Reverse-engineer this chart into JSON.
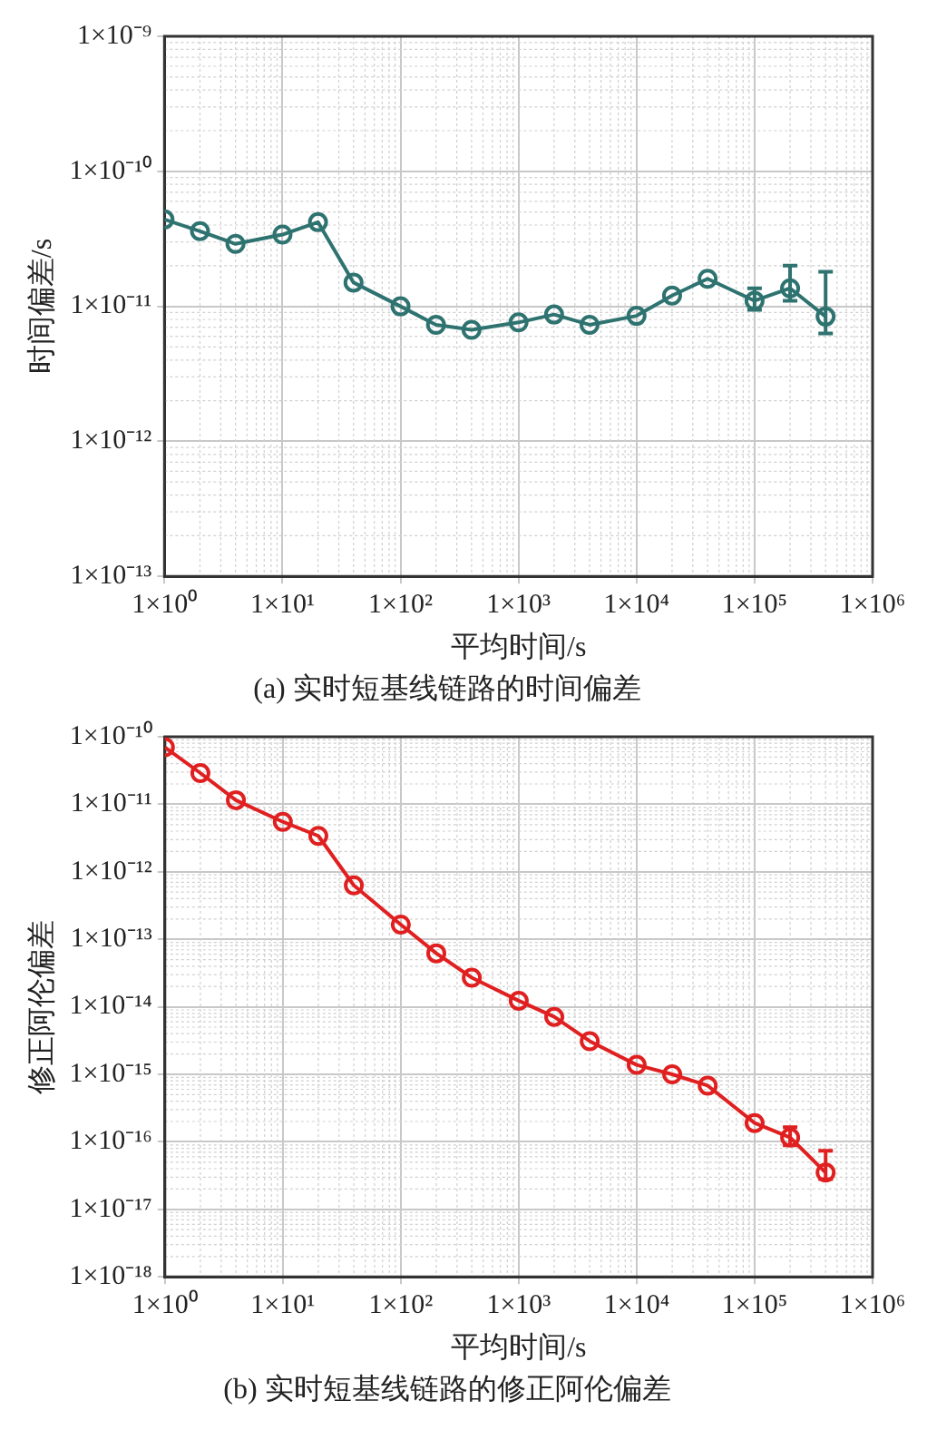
{
  "chart_data": [
    {
      "type": "line",
      "title": "(a) 实时短基线链路的时间偏差",
      "xlabel": "平均时间/s",
      "ylabel": "时间偏差/s",
      "log": "xy",
      "grid": true,
      "marker": "circle",
      "line_style": "solid",
      "x": [
        1,
        2,
        4,
        10,
        20,
        40,
        100,
        200,
        400,
        1000,
        2000,
        4000,
        10000,
        20000,
        40000,
        100000,
        200000,
        400000
      ],
      "xlim": [
        1,
        1000000
      ],
      "xticks": [
        {
          "value": 1,
          "label": "1×10⁰"
        },
        {
          "value": 10,
          "label": "1×10¹"
        },
        {
          "value": 100,
          "label": "1×10²"
        },
        {
          "value": 1000,
          "label": "1×10³"
        },
        {
          "value": 10000,
          "label": "1×10⁴"
        },
        {
          "value": 100000,
          "label": "1×10⁵"
        },
        {
          "value": 1000000,
          "label": "1×10⁶"
        }
      ],
      "ylim": [
        1e-13,
        1e-09
      ],
      "yticks": [
        {
          "value": 1e-13,
          "label": "1×10⁻¹³"
        },
        {
          "value": 1e-12,
          "label": "1×10⁻¹²"
        },
        {
          "value": 1e-11,
          "label": "1×10⁻¹¹"
        },
        {
          "value": 1e-10,
          "label": "1×10⁻¹⁰"
        },
        {
          "value": 1e-09,
          "label": "1×10⁻⁹"
        }
      ],
      "series": [
        {
          "color": "#2e7370",
          "values": [
            4.4e-11,
            3.6e-11,
            2.9e-11,
            3.4e-11,
            4.2e-11,
            1.5e-11,
            1e-11,
            7.3e-12,
            6.7e-12,
            7.6e-12,
            8.7e-12,
            7.3e-12,
            8.5e-12,
            1.2e-11,
            1.6e-11,
            1.1e-11,
            1.36e-11,
            8.4e-12
          ],
          "errors": [
            null,
            null,
            null,
            null,
            null,
            null,
            null,
            null,
            null,
            null,
            null,
            null,
            null,
            null,
            null,
            [
              9.4e-12,
              1.36e-11
            ],
            [
              1.1e-11,
              2e-11
            ],
            [
              6.3e-12,
              1.8e-11
            ]
          ]
        }
      ]
    },
    {
      "type": "line",
      "title": "(b) 实时短基线链路的修正阿伦偏差",
      "xlabel": "平均时间/s",
      "ylabel": "修正阿伦偏差",
      "log": "xy",
      "grid": true,
      "marker": "circle",
      "line_style": "solid",
      "x": [
        1,
        2,
        4,
        10,
        20,
        40,
        100,
        200,
        400,
        1000,
        2000,
        4000,
        10000,
        20000,
        40000,
        100000,
        200000,
        400000
      ],
      "xlim": [
        1,
        1000000
      ],
      "xticks": [
        {
          "value": 1,
          "label": "1×10⁰"
        },
        {
          "value": 10,
          "label": "1×10¹"
        },
        {
          "value": 100,
          "label": "1×10²"
        },
        {
          "value": 1000,
          "label": "1×10³"
        },
        {
          "value": 10000,
          "label": "1×10⁴"
        },
        {
          "value": 100000,
          "label": "1×10⁵"
        },
        {
          "value": 1000000,
          "label": "1×10⁶"
        }
      ],
      "ylim": [
        1e-18,
        1e-10
      ],
      "yticks": [
        {
          "value": 1e-18,
          "label": "1×10⁻¹⁸"
        },
        {
          "value": 1e-17,
          "label": "1×10⁻¹⁷"
        },
        {
          "value": 1e-16,
          "label": "1×10⁻¹⁶"
        },
        {
          "value": 1e-15,
          "label": "1×10⁻¹⁵"
        },
        {
          "value": 1e-14,
          "label": "1×10⁻¹⁴"
        },
        {
          "value": 1e-13,
          "label": "1×10⁻¹³"
        },
        {
          "value": 1e-12,
          "label": "1×10⁻¹²"
        },
        {
          "value": 1e-11,
          "label": "1×10⁻¹¹"
        },
        {
          "value": 1e-10,
          "label": "1×10⁻¹⁰"
        }
      ],
      "series": [
        {
          "color": "#e02020",
          "values": [
            7e-11,
            2.9e-11,
            1.15e-11,
            5.5e-12,
            3.4e-12,
            6.3e-13,
            1.65e-13,
            6.2e-14,
            2.7e-14,
            1.23e-14,
            7.1e-15,
            3.1e-15,
            1.38e-15,
            1e-15,
            6.8e-16,
            1.9e-16,
            1.16e-16,
            3.5e-17
          ],
          "errors": [
            null,
            null,
            null,
            null,
            null,
            null,
            null,
            null,
            null,
            null,
            null,
            null,
            null,
            null,
            null,
            null,
            [
              8.9e-17,
              1.65e-16
            ],
            [
              2.8e-17,
              7.4e-17
            ]
          ]
        }
      ]
    }
  ]
}
